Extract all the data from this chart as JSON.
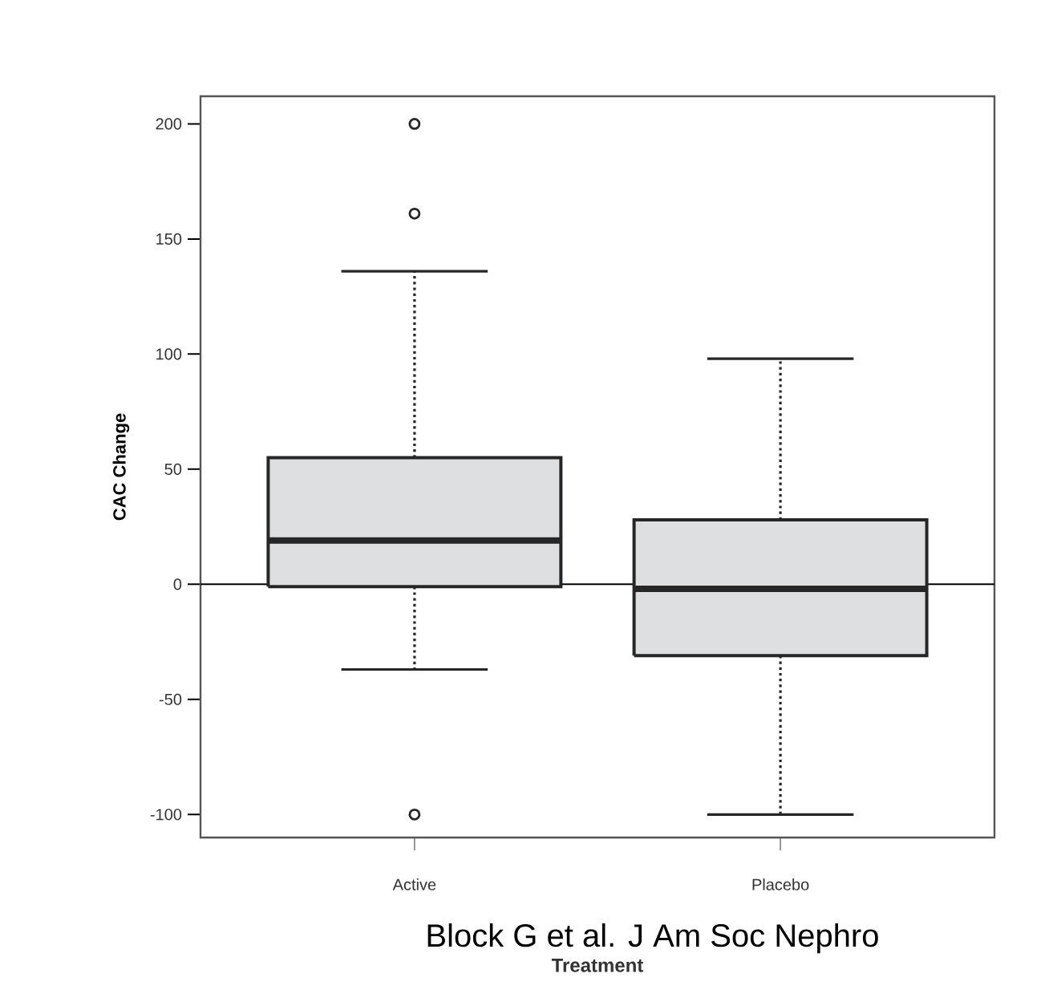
{
  "chart_data": {
    "type": "box",
    "xlabel": "Treatment",
    "ylabel": "CAC Change",
    "categories": [
      "Active",
      "Placebo"
    ],
    "series": [
      {
        "color": "#dddfe0",
        "boxes": [
          {
            "low": -37,
            "q1": -1,
            "median": 19,
            "q3": 55,
            "high": 136,
            "outliers": [
              200,
              161,
              -100
            ]
          },
          {
            "low": -100,
            "q1": -31,
            "median": -2,
            "q3": 28,
            "high": 98
          }
        ]
      }
    ],
    "ylim": [
      -110,
      212
    ],
    "yticks": [
      -100,
      -50,
      0,
      50,
      100,
      150,
      200
    ],
    "ref_lines": [
      {
        "axis": "y",
        "value": 0,
        "color": "#000000"
      }
    ],
    "marker": "circle",
    "annotations": [
      "Block G et al. J Am Soc Nephro"
    ]
  }
}
